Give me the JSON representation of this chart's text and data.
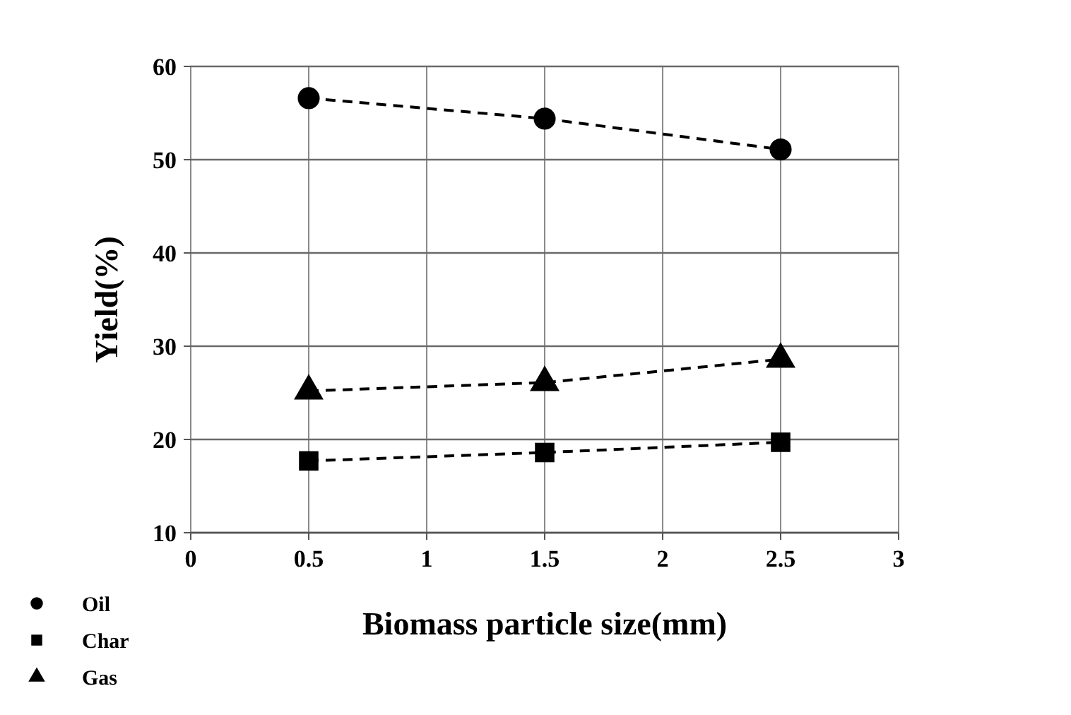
{
  "chart_data": {
    "type": "line",
    "xlabel": "Biomass particle size(mm)",
    "ylabel": "Yield(%)",
    "x": [
      0.5,
      1.5,
      2.5
    ],
    "series": [
      {
        "name": "Oil",
        "color": "#000000",
        "marker": "circle",
        "values": [
          56.6,
          54.4,
          51.1
        ]
      },
      {
        "name": "Char",
        "color": "#000000",
        "marker": "square",
        "values": [
          17.7,
          18.6,
          19.7
        ]
      },
      {
        "name": "Gas",
        "color": "#000000",
        "marker": "triangle",
        "values": [
          25.2,
          26.1,
          28.6
        ]
      }
    ],
    "xlim": [
      0,
      3
    ],
    "xticks": [
      0,
      0.5,
      1,
      1.5,
      2,
      2.5,
      3
    ],
    "ylim": [
      10,
      60
    ],
    "yticks": [
      10,
      20,
      30,
      40,
      50,
      60
    ],
    "grid": true,
    "legend": "bottom left",
    "line_style": "dashed"
  }
}
